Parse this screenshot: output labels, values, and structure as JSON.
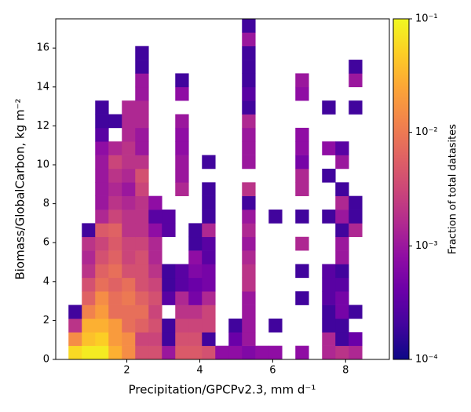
{
  "chart_data": {
    "type": "hist2d",
    "xlabel": "Precipitation/GPCPv2.3,  mm d⁻¹",
    "ylabel": "Biomass/GlobalCarbon,  kg m⁻²",
    "colorbar_label": "Fraction of total datasites",
    "colormap": "plasma",
    "color_scale": "log",
    "clim": [
      0.0001,
      0.1
    ],
    "cticks": [
      {
        "value": 0.0001,
        "label": "10⁻⁴"
      },
      {
        "value": 0.001,
        "label": "10⁻³"
      },
      {
        "value": 0.01,
        "label": "10⁻²"
      },
      {
        "value": 0.1,
        "label": "10⁻¹"
      }
    ],
    "xlim": [
      0.05,
      9.2
    ],
    "ylim": [
      0,
      17.5
    ],
    "xticks": [
      2,
      4,
      6,
      8
    ],
    "yticks": [
      0,
      2,
      4,
      6,
      8,
      10,
      12,
      14,
      16
    ],
    "xbins": [
      0.4,
      0.766,
      1.132,
      1.498,
      1.864,
      2.23,
      2.596,
      2.962,
      3.328,
      3.694,
      4.06,
      4.426,
      4.792,
      5.158,
      5.524,
      5.89,
      6.256,
      6.622,
      6.988,
      7.354,
      7.72,
      8.086,
      8.452
    ],
    "ybins": [
      0,
      0.7,
      1.4,
      2.1,
      2.8,
      3.5,
      4.2,
      4.9,
      5.6,
      6.3,
      7,
      7.7,
      8.4,
      9.1,
      9.8,
      10.5,
      11.2,
      11.9,
      12.6,
      13.3,
      14,
      14.7,
      15.4,
      16.1,
      16.8,
      17.5
    ],
    "z": [
      [
        0.06,
        0.08,
        0.08,
        0.03,
        0.015,
        0.004,
        0.004,
        0.001,
        0.005,
        0.005,
        0.004,
        0.0008,
        0.0008,
        0.0006,
        0.0008,
        0.0008,
        null,
        0.0008,
        null,
        0.0015,
        0.002,
        0.0015
      ],
      [
        0.015,
        0.04,
        0.05,
        0.02,
        0.015,
        0.003,
        0.003,
        0.0002,
        0.004,
        0.004,
        0.0002,
        null,
        0.0004,
        0.001,
        null,
        null,
        null,
        null,
        null,
        0.0015,
        0.0002,
        0.0004
      ],
      [
        0.002,
        0.03,
        0.03,
        0.02,
        0.008,
        0.006,
        0.004,
        0.0002,
        0.003,
        0.003,
        0.003,
        null,
        0.0002,
        0.001,
        null,
        0.0002,
        null,
        null,
        null,
        0.0002,
        0.0002,
        null
      ],
      [
        0.0002,
        0.012,
        0.02,
        0.008,
        0.008,
        0.008,
        0.003,
        null,
        0.002,
        0.002,
        0.003,
        null,
        null,
        0.001,
        null,
        null,
        null,
        null,
        null,
        0.0002,
        0.0005,
        0.0002
      ],
      [
        null,
        0.006,
        0.015,
        0.008,
        0.01,
        0.006,
        0.004,
        0.0003,
        0.0015,
        0.0005,
        0.0015,
        null,
        null,
        0.001,
        null,
        null,
        null,
        0.0002,
        null,
        0.0003,
        0.0005,
        null
      ],
      [
        null,
        0.004,
        0.008,
        0.006,
        0.008,
        0.004,
        0.003,
        0.0002,
        0.0003,
        0.0004,
        0.0005,
        null,
        null,
        0.002,
        null,
        null,
        null,
        null,
        null,
        0.0003,
        0.0003,
        null
      ],
      [
        null,
        0.002,
        0.006,
        0.008,
        0.004,
        0.004,
        0.002,
        0.0002,
        0.0003,
        0.0006,
        0.0005,
        null,
        null,
        0.002,
        null,
        null,
        null,
        0.0002,
        null,
        0.0003,
        0.0002,
        null
      ],
      [
        null,
        0.0015,
        0.004,
        0.006,
        0.003,
        0.004,
        0.0015,
        null,
        null,
        0.0008,
        0.0003,
        null,
        null,
        0.0015,
        null,
        null,
        null,
        null,
        null,
        null,
        0.001,
        null
      ],
      [
        null,
        0.002,
        0.003,
        0.005,
        0.003,
        0.003,
        0.0015,
        null,
        null,
        0.0002,
        0.0003,
        null,
        null,
        0.001,
        null,
        null,
        null,
        0.0015,
        null,
        null,
        0.001,
        null
      ],
      [
        null,
        0.0002,
        0.005,
        0.006,
        0.002,
        0.002,
        0.0008,
        0.0003,
        null,
        0.0002,
        0.0015,
        null,
        null,
        0.0015,
        null,
        null,
        null,
        null,
        null,
        null,
        0.0002,
        0.0015
      ],
      [
        null,
        null,
        0.0015,
        0.003,
        0.002,
        0.002,
        0.0003,
        0.0003,
        null,
        null,
        0.0002,
        null,
        null,
        0.001,
        null,
        0.0002,
        null,
        0.0002,
        null,
        0.0002,
        0.001,
        0.0002
      ],
      [
        null,
        null,
        0.001,
        0.002,
        0.0015,
        0.002,
        0.0008,
        null,
        null,
        null,
        0.0002,
        null,
        null,
        0.0002,
        null,
        null,
        null,
        null,
        null,
        null,
        0.0015,
        0.0002
      ],
      [
        null,
        null,
        0.001,
        0.0015,
        0.001,
        0.003,
        null,
        null,
        0.0015,
        null,
        0.0002,
        null,
        null,
        0.002,
        null,
        null,
        null,
        0.0015,
        null,
        null,
        0.0002,
        null
      ],
      [
        null,
        null,
        0.001,
        0.002,
        0.0015,
        0.004,
        null,
        null,
        0.001,
        null,
        null,
        null,
        null,
        null,
        null,
        null,
        null,
        0.0015,
        null,
        0.0002,
        null,
        null
      ],
      [
        null,
        null,
        0.001,
        0.003,
        0.002,
        0.002,
        null,
        null,
        0.001,
        null,
        0.0002,
        null,
        null,
        0.001,
        null,
        null,
        null,
        0.0005,
        null,
        null,
        0.001,
        null
      ],
      [
        null,
        null,
        0.0008,
        0.0015,
        0.002,
        0.001,
        null,
        null,
        0.0008,
        null,
        null,
        null,
        null,
        0.001,
        null,
        null,
        null,
        0.0008,
        null,
        0.0008,
        0.0003,
        null
      ],
      [
        null,
        null,
        0.0003,
        null,
        0.0015,
        0.001,
        null,
        null,
        0.0008,
        null,
        null,
        null,
        null,
        0.001,
        null,
        null,
        null,
        0.0008,
        null,
        null,
        null,
        null
      ],
      [
        null,
        null,
        0.0002,
        0.0002,
        0.0015,
        0.0015,
        null,
        null,
        0.001,
        null,
        null,
        null,
        null,
        0.0015,
        null,
        null,
        null,
        null,
        null,
        null,
        null,
        null
      ],
      [
        null,
        null,
        0.0002,
        null,
        0.0015,
        0.0015,
        null,
        null,
        null,
        null,
        null,
        null,
        null,
        0.0002,
        null,
        null,
        null,
        null,
        null,
        0.0002,
        null,
        0.0002
      ],
      [
        null,
        null,
        null,
        null,
        null,
        0.001,
        null,
        null,
        0.0008,
        null,
        null,
        null,
        null,
        0.0003,
        null,
        null,
        null,
        0.0008,
        null,
        null,
        null,
        null
      ],
      [
        null,
        null,
        null,
        null,
        null,
        0.001,
        null,
        null,
        0.0002,
        null,
        null,
        null,
        null,
        0.0002,
        null,
        null,
        null,
        0.001,
        null,
        null,
        null,
        0.001
      ],
      [
        null,
        null,
        null,
        null,
        null,
        0.0002,
        null,
        null,
        null,
        null,
        null,
        null,
        null,
        0.0002,
        null,
        null,
        null,
        null,
        null,
        null,
        null,
        0.0002
      ],
      [
        null,
        null,
        null,
        null,
        null,
        0.0002,
        null,
        null,
        null,
        null,
        null,
        null,
        null,
        0.0002,
        null,
        null,
        null,
        null,
        null,
        null,
        null,
        null
      ],
      [
        null,
        null,
        null,
        null,
        null,
        null,
        null,
        null,
        null,
        null,
        null,
        null,
        null,
        0.001,
        null,
        null,
        null,
        null,
        null,
        null,
        null,
        null
      ],
      [
        null,
        null,
        null,
        null,
        null,
        null,
        null,
        null,
        null,
        null,
        null,
        null,
        null,
        0.0002,
        null,
        null,
        null,
        null,
        null,
        null,
        null,
        null
      ]
    ]
  }
}
